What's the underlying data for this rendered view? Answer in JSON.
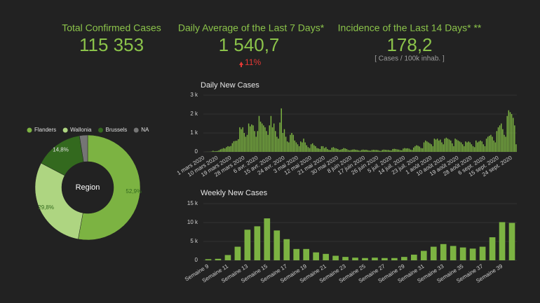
{
  "kpis": [
    {
      "title": "Total Confirmed Cases",
      "value": "115 353"
    },
    {
      "title": "Daily Average of the Last 7 Days*",
      "value": "1 540,7",
      "change": "11%"
    },
    {
      "title": "Incidence of the Last 14 Days* **",
      "value": "178,2",
      "note": "[ Cases / 100k inhab. ]"
    }
  ],
  "chart_data": [
    {
      "type": "pie",
      "center_label": "Region",
      "legend": "top",
      "categories": [
        "Flanders",
        "Wallonia",
        "Brussels",
        "NA"
      ],
      "values": [
        52.9,
        29.8,
        14.8,
        2.5
      ],
      "value_labels": [
        "52,9%",
        "29,8%",
        "14,8%",
        null
      ],
      "colors": [
        "#7cb342",
        "#aed581",
        "#33691e",
        "#757575"
      ]
    },
    {
      "type": "bar",
      "title": "Daily New Cases",
      "color": "#7cb342",
      "grid": true,
      "ylim": [
        0,
        3000
      ],
      "yticks": [
        0,
        {
          "value": 1000,
          "label": "1 k"
        },
        {
          "value": 2000,
          "label": "2 k"
        },
        {
          "value": 3000,
          "label": "3 k"
        }
      ],
      "categories": [
        "1 mars 2020",
        null,
        null,
        null,
        null,
        null,
        null,
        null,
        null,
        "10 mars 2020",
        null,
        null,
        null,
        null,
        null,
        null,
        null,
        null,
        "19 mars 2020",
        null,
        null,
        null,
        null,
        null,
        null,
        null,
        null,
        "28 mars 2020",
        null,
        null,
        null,
        null,
        null,
        null,
        null,
        null,
        "6 avr. 2020",
        null,
        null,
        null,
        null,
        null,
        null,
        null,
        null,
        "15 avr. 2020",
        null,
        null,
        null,
        null,
        null,
        null,
        null,
        null,
        "24 avr. 2020",
        null,
        null,
        null,
        null,
        null,
        null,
        null,
        null,
        "3 mai 2020",
        null,
        null,
        null,
        null,
        null,
        null,
        null,
        null,
        "12 mai 2020",
        null,
        null,
        null,
        null,
        null,
        null,
        null,
        null,
        "21 mai 2020",
        null,
        null,
        null,
        null,
        null,
        null,
        null,
        null,
        "30 mai 2020",
        null,
        null,
        null,
        null,
        null,
        null,
        null,
        null,
        "8 juin 2020",
        null,
        null,
        null,
        null,
        null,
        null,
        null,
        null,
        "17 juin 2020",
        null,
        null,
        null,
        null,
        null,
        null,
        null,
        null,
        "26 juin 2020",
        null,
        null,
        null,
        null,
        null,
        null,
        null,
        null,
        "5 juil. 2020",
        null,
        null,
        null,
        null,
        null,
        null,
        null,
        null,
        "14 juil. 2020",
        null,
        null,
        null,
        null,
        null,
        null,
        null,
        null,
        "23 juil. 2020",
        null,
        null,
        null,
        null,
        null,
        null,
        null,
        null,
        "1 août 2020",
        null,
        null,
        null,
        null,
        null,
        null,
        null,
        null,
        "10 août 2020",
        null,
        null,
        null,
        null,
        null,
        null,
        null,
        null,
        "19 août 2020",
        null,
        null,
        null,
        null,
        null,
        null,
        null,
        null,
        "28 août 2020",
        null,
        null,
        null,
        null,
        null,
        null,
        null,
        null,
        "6 sept. 2020",
        null,
        null,
        null,
        null,
        null,
        null,
        null,
        null,
        "15 sept. 2020",
        null,
        null,
        null,
        null,
        null,
        null,
        null,
        null,
        "24 sept. 2020",
        null,
        null,
        null
      ],
      "values": [
        0,
        2,
        5,
        5,
        10,
        20,
        60,
        30,
        40,
        45,
        80,
        130,
        160,
        200,
        180,
        250,
        300,
        280,
        310,
        460,
        560,
        580,
        590,
        670,
        1300,
        1200,
        1300,
        1000,
        800,
        900,
        1500,
        1350,
        1450,
        1400,
        1100,
        800,
        1100,
        1900,
        1600,
        1500,
        1400,
        1300,
        1100,
        900,
        1400,
        1900,
        1300,
        1500,
        1100,
        800,
        700,
        1550,
        2300,
        1000,
        1200,
        800,
        550,
        500,
        900,
        1000,
        900,
        600,
        500,
        400,
        300,
        550,
        500,
        700,
        500,
        350,
        250,
        200,
        400,
        450,
        350,
        300,
        200,
        180,
        150,
        300,
        300,
        200,
        250,
        150,
        100,
        100,
        220,
        250,
        200,
        180,
        150,
        100,
        120,
        150,
        200,
        180,
        150,
        100,
        80,
        100,
        120,
        130,
        110,
        100,
        80,
        60,
        100,
        120,
        100,
        110,
        90,
        70,
        60,
        100,
        110,
        100,
        100,
        90,
        60,
        50,
        100,
        120,
        110,
        100,
        100,
        80,
        70,
        150,
        160,
        150,
        130,
        120,
        90,
        80,
        170,
        200,
        180,
        190,
        170,
        120,
        100,
        230,
        300,
        350,
        320,
        280,
        200,
        190,
        500,
        600,
        550,
        500,
        450,
        400,
        300,
        700,
        650,
        700,
        600,
        650,
        500,
        400,
        700,
        750,
        700,
        650,
        600,
        450,
        300,
        700,
        650,
        600,
        550,
        500,
        400,
        300,
        550,
        500,
        550,
        500,
        400,
        300,
        250,
        600,
        500,
        550,
        600,
        550,
        400,
        300,
        700,
        800,
        850,
        900,
        800,
        600,
        500,
        1100,
        1300,
        1400,
        1500,
        1200,
        900,
        800,
        1900,
        2200,
        2100,
        2000,
        1800,
        1400,
        400
      ]
    },
    {
      "type": "bar",
      "title": "Weekly New Cases",
      "color": "#7cb342",
      "grid": true,
      "ylim": [
        0,
        15000
      ],
      "yticks": [
        0,
        {
          "value": 5000,
          "label": "5 k"
        },
        {
          "value": 10000,
          "label": "10 k"
        },
        {
          "value": 15000,
          "label": "15 k"
        }
      ],
      "categories": [
        "Semaine 9",
        null,
        "Semaine 11",
        null,
        "Semaine 13",
        null,
        "Semaine 15",
        null,
        "Semaine 17",
        null,
        "Semaine 19",
        null,
        "Semaine 21",
        null,
        "Semaine 23",
        null,
        "Semaine 25",
        null,
        "Semaine 27",
        null,
        "Semaine 29",
        null,
        "Semaine 31",
        null,
        "Semaine 33",
        null,
        "Semaine 35",
        null,
        "Semaine 37",
        null,
        "Semaine 39",
        null
      ],
      "values": [
        300,
        400,
        1400,
        3600,
        8100,
        9000,
        11100,
        7900,
        5600,
        3000,
        3000,
        2100,
        1700,
        1200,
        900,
        700,
        600,
        700,
        600,
        600,
        900,
        1500,
        2500,
        3600,
        4300,
        3800,
        3400,
        3100,
        3600,
        6100,
        10100,
        9900
      ]
    }
  ]
}
